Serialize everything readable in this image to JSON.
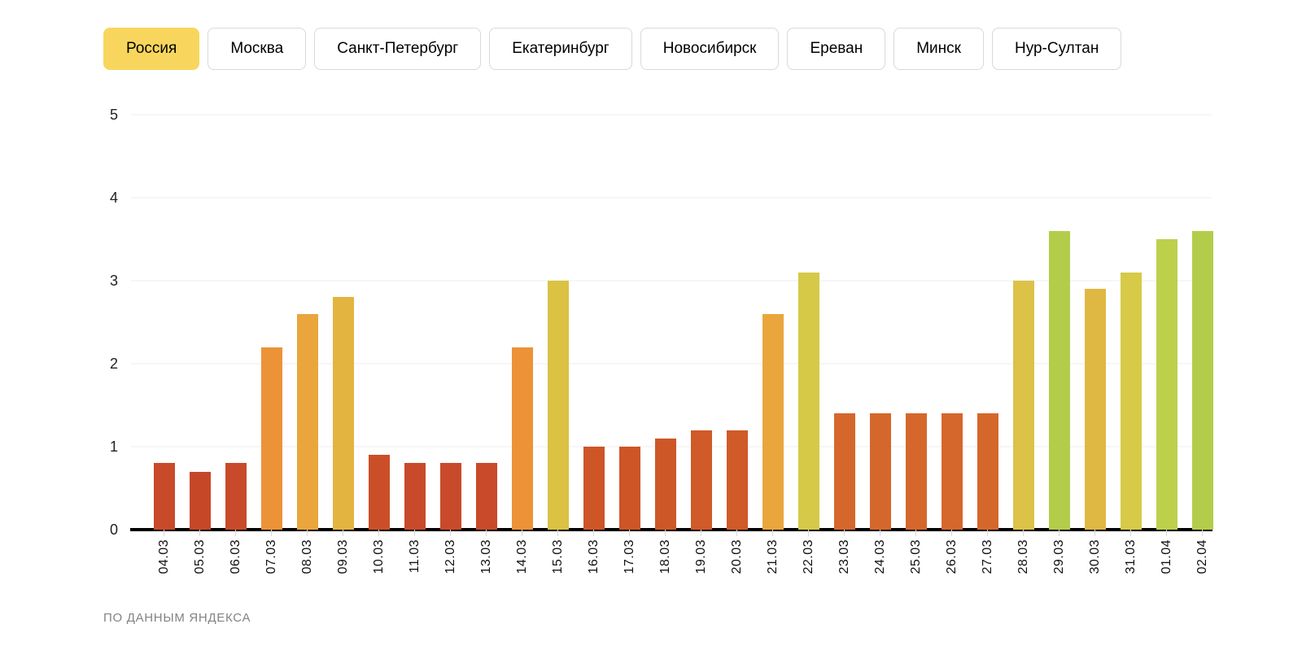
{
  "tabs": {
    "selected_bg": "#f8d65e",
    "items": [
      {
        "label": "Россия",
        "selected": true
      },
      {
        "label": "Москва",
        "selected": false
      },
      {
        "label": "Санкт-Петербург",
        "selected": false
      },
      {
        "label": "Екатеринбург",
        "selected": false
      },
      {
        "label": "Новосибирск",
        "selected": false
      },
      {
        "label": "Ереван",
        "selected": false
      },
      {
        "label": "Минск",
        "selected": false
      },
      {
        "label": "Нур-Султан",
        "selected": false
      }
    ]
  },
  "chart_data": {
    "type": "bar",
    "categories": [
      "04.03",
      "05.03",
      "06.03",
      "07.03",
      "08.03",
      "09.03",
      "10.03",
      "11.03",
      "12.03",
      "13.03",
      "14.03",
      "15.03",
      "16.03",
      "17.03",
      "18.03",
      "19.03",
      "20.03",
      "21.03",
      "22.03",
      "23.03",
      "24.03",
      "25.03",
      "26.03",
      "27.03",
      "28.03",
      "29.03",
      "30.03",
      "31.03",
      "01.04",
      "02.04"
    ],
    "values": [
      0.8,
      0.7,
      0.8,
      2.2,
      2.6,
      2.8,
      0.9,
      0.8,
      0.8,
      0.8,
      2.2,
      3.0,
      1.0,
      1.0,
      1.1,
      1.2,
      1.2,
      2.6,
      3.1,
      1.4,
      1.4,
      1.4,
      1.4,
      1.4,
      3.0,
      3.6,
      2.9,
      3.1,
      3.5,
      3.6
    ],
    "bar_colors": [
      "#c84a2a",
      "#c64728",
      "#c84a2a",
      "#ec9338",
      "#eaa63c",
      "#e4b441",
      "#ca4f28",
      "#c84a2a",
      "#c84a2a",
      "#c84a2a",
      "#ec9338",
      "#dbc243",
      "#cd5526",
      "#cd5526",
      "#ce5727",
      "#d05a28",
      "#d05a28",
      "#eaa63c",
      "#d6c948",
      "#d5672d",
      "#d5672d",
      "#d5672d",
      "#d5672d",
      "#d5672d",
      "#dcc247",
      "#b3cd4a",
      "#dfb843",
      "#d6ca47",
      "#bcd04c",
      "#b3cd4a"
    ],
    "title": "",
    "xlabel": "",
    "ylabel": "",
    "ylim": [
      0,
      5
    ],
    "yticks": [
      0,
      1,
      2,
      3,
      4,
      5
    ],
    "grid": true,
    "legend_position": "none",
    "x_tick_rotation_deg": 90
  },
  "footer": {
    "source_label": "ПО ДАННЫМ ЯНДЕКСА"
  }
}
